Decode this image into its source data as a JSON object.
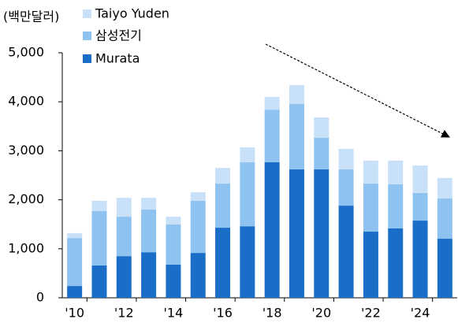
{
  "chart_data": {
    "type": "stacked_bar",
    "y_label": "(백만달러)",
    "categories": [
      "'10",
      null,
      "'12",
      null,
      "'14",
      null,
      "'16",
      null,
      "'18",
      null,
      "'20",
      null,
      "'22",
      null,
      "'24",
      null
    ],
    "series": [
      {
        "name": "Murata",
        "color": "#1a6ec8",
        "values": [
          240,
          660,
          850,
          930,
          675,
          915,
          1430,
          1460,
          2765,
          2620,
          2620,
          1880,
          1350,
          1415,
          1575,
          1205
        ]
      },
      {
        "name": "삼성전기",
        "color": "#8ec3f1",
        "values": [
          980,
          1110,
          805,
          870,
          820,
          1065,
          900,
          1305,
          1075,
          1335,
          645,
          740,
          980,
          900,
          565,
          820
        ]
      },
      {
        "name": "Taiyo Yuden",
        "color": "#c8e1f9",
        "values": [
          100,
          210,
          385,
          240,
          160,
          175,
          320,
          305,
          260,
          385,
          415,
          420,
          470,
          485,
          560,
          420
        ]
      }
    ],
    "ylim": [
      0,
      5000
    ],
    "yticks": [
      0,
      {
        "value": 1000,
        "label": "1,000"
      },
      {
        "value": 2000,
        "label": "2,000"
      },
      {
        "value": 3000,
        "label": "3,000"
      },
      {
        "value": 4000,
        "label": "4,000"
      },
      {
        "value": 5000,
        "label": "5,000"
      }
    ]
  }
}
